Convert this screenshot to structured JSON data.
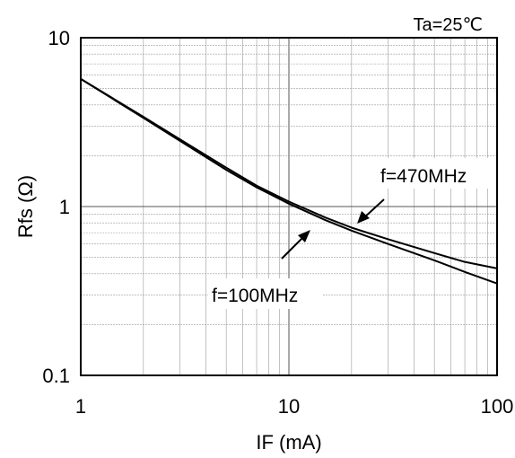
{
  "chart_data": {
    "type": "line",
    "title": "",
    "condition_label": "Ta=25℃",
    "xlabel": "IF (mA)",
    "ylabel": "Rfs (Ω)",
    "xscale": "log",
    "yscale": "log",
    "xlim": [
      1,
      100
    ],
    "ylim": [
      0.1,
      10
    ],
    "grid": true,
    "x_ticks": [
      {
        "value": 1,
        "label": "1"
      },
      {
        "value": 10,
        "label": "10"
      },
      {
        "value": 100,
        "label": "100"
      }
    ],
    "y_ticks": [
      {
        "value": 0.1,
        "label": "0.1"
      },
      {
        "value": 1,
        "label": "1"
      },
      {
        "value": 10,
        "label": "10"
      }
    ],
    "series": [
      {
        "name": "f=470MHz",
        "x": [
          1,
          2,
          3,
          5,
          7,
          10,
          15,
          20,
          30,
          50,
          70,
          100
        ],
        "y": [
          5.7,
          3.4,
          2.5,
          1.7,
          1.33,
          1.07,
          0.86,
          0.75,
          0.64,
          0.53,
          0.47,
          0.43
        ]
      },
      {
        "name": "f=100MHz",
        "x": [
          1,
          2,
          3,
          5,
          7,
          10,
          15,
          20,
          30,
          50,
          70,
          100
        ],
        "y": [
          5.7,
          3.35,
          2.45,
          1.65,
          1.3,
          1.04,
          0.83,
          0.72,
          0.6,
          0.48,
          0.41,
          0.35
        ]
      }
    ]
  }
}
